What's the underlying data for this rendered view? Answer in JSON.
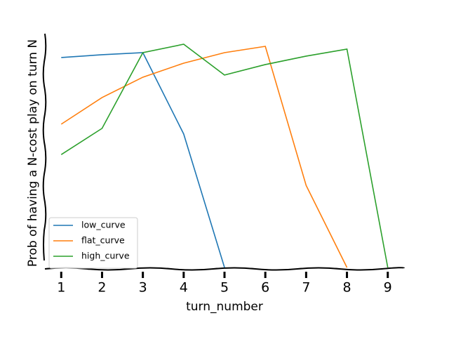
{
  "chart_data": {
    "type": "line",
    "x_label": "turn_number",
    "y_label": "Prob of having a N-cost play on turn N",
    "x": [
      1,
      2,
      3,
      4,
      5,
      6,
      7,
      8,
      9
    ],
    "xlim": [
      0.6,
      9.4
    ],
    "xticks": [
      1,
      2,
      3,
      4,
      5,
      6,
      7,
      8,
      9
    ],
    "ylim": [
      0,
      1
    ],
    "legend": "lower left",
    "series": [
      {
        "name": "low_curve",
        "color": "#1f77b4",
        "values": [
          0.898,
          0.91,
          0.919,
          0.571,
          0,
          null,
          null,
          null,
          null
        ]
      },
      {
        "name": "flat_curve",
        "color": "#ff7f0e",
        "values": [
          0.613,
          0.727,
          0.814,
          0.874,
          0.919,
          0.946,
          0.351,
          0,
          null
        ]
      },
      {
        "name": "high_curve",
        "color": "#2ca02c",
        "values": [
          0.483,
          0.595,
          0.919,
          0.955,
          0.823,
          0.868,
          0.904,
          0.934,
          0
        ]
      }
    ]
  }
}
